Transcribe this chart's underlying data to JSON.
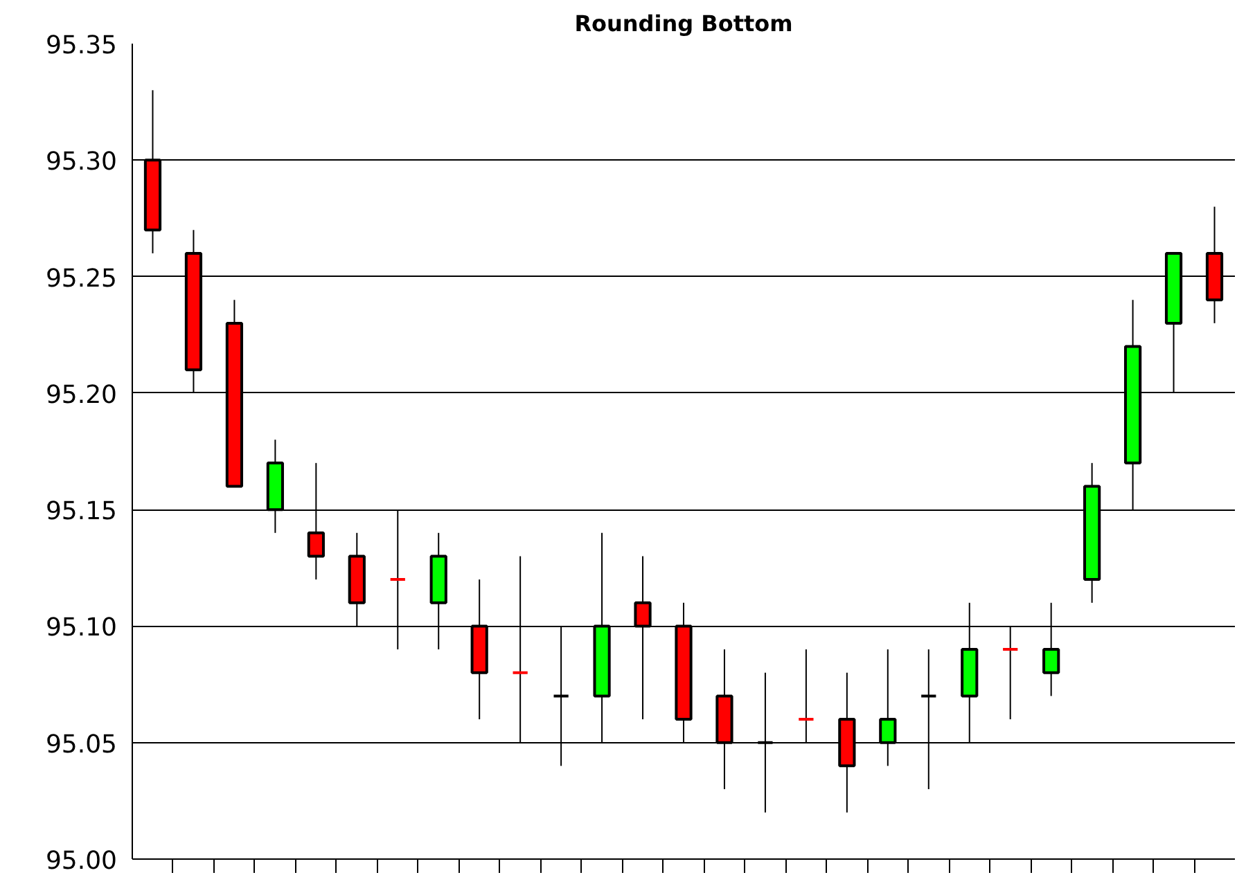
{
  "chart_data": {
    "type": "candlestick",
    "title": "Rounding Bottom",
    "categories": [
      null,
      null,
      null,
      null,
      null,
      null,
      null,
      null,
      null,
      null,
      null,
      null,
      null,
      null,
      null,
      null,
      null,
      null,
      null,
      null,
      null,
      null,
      null,
      null,
      null,
      null,
      null
    ],
    "ohlc": [
      [
        95.3,
        95.33,
        95.26,
        95.27
      ],
      [
        95.26,
        95.27,
        95.2,
        95.21
      ],
      [
        95.23,
        95.24,
        95.16,
        95.16
      ],
      [
        95.15,
        95.18,
        95.14,
        95.17
      ],
      [
        95.14,
        95.17,
        95.12,
        95.13
      ],
      [
        95.13,
        95.14,
        95.1,
        95.11
      ],
      [
        95.12,
        95.15,
        95.09,
        95.12
      ],
      [
        95.11,
        95.14,
        95.09,
        95.13
      ],
      [
        95.1,
        95.12,
        95.06,
        95.08
      ],
      [
        95.08,
        95.13,
        95.05,
        95.08
      ],
      [
        95.07,
        95.1,
        95.04,
        95.07
      ],
      [
        95.07,
        95.14,
        95.05,
        95.1
      ],
      [
        95.11,
        95.13,
        95.06,
        95.1
      ],
      [
        95.1,
        95.11,
        95.05,
        95.06
      ],
      [
        95.07,
        95.09,
        95.03,
        95.05
      ],
      [
        95.05,
        95.08,
        95.02,
        95.05
      ],
      [
        95.06,
        95.09,
        95.05,
        95.06
      ],
      [
        95.06,
        95.08,
        95.02,
        95.04
      ],
      [
        95.05,
        95.09,
        95.04,
        95.06
      ],
      [
        95.07,
        95.09,
        95.03,
        95.07
      ],
      [
        95.07,
        95.11,
        95.05,
        95.09
      ],
      [
        95.09,
        95.1,
        95.06,
        95.09
      ],
      [
        95.08,
        95.11,
        95.07,
        95.09
      ],
      [
        95.12,
        95.17,
        95.11,
        95.16
      ],
      [
        95.17,
        95.24,
        95.15,
        95.22
      ],
      [
        95.23,
        95.26,
        95.2,
        95.26
      ],
      [
        95.26,
        95.28,
        95.23,
        95.24
      ]
    ],
    "colors": [
      "#ff0000",
      "#ff0000",
      "#ff0000",
      "#00ff00",
      "#ff0000",
      "#ff0000",
      "#ff0000",
      "#00ff00",
      "#ff0000",
      "#ff0000",
      "#000000",
      "#00ff00",
      "#ff0000",
      "#ff0000",
      "#ff0000",
      "#000000",
      "#ff0000",
      "#ff0000",
      "#00ff00",
      "#000000",
      "#00ff00",
      "#ff0000",
      "#00ff00",
      "#00ff00",
      "#00ff00",
      "#00ff00",
      "#ff0000"
    ],
    "ylim": [
      95.0,
      95.35
    ],
    "yticks": [
      {
        "value": 95.0,
        "label": "95.00"
      },
      {
        "value": 95.05,
        "label": "95.05"
      },
      {
        "value": 95.1,
        "label": "95.10"
      },
      {
        "value": 95.15,
        "label": "95.15"
      },
      {
        "value": 95.2,
        "label": "95.20"
      },
      {
        "value": 95.25,
        "label": "95.25"
      },
      {
        "value": 95.3,
        "label": "95.30"
      },
      {
        "value": 95.35,
        "label": "95.35"
      }
    ],
    "grid": "y",
    "tick_labels": "y"
  }
}
